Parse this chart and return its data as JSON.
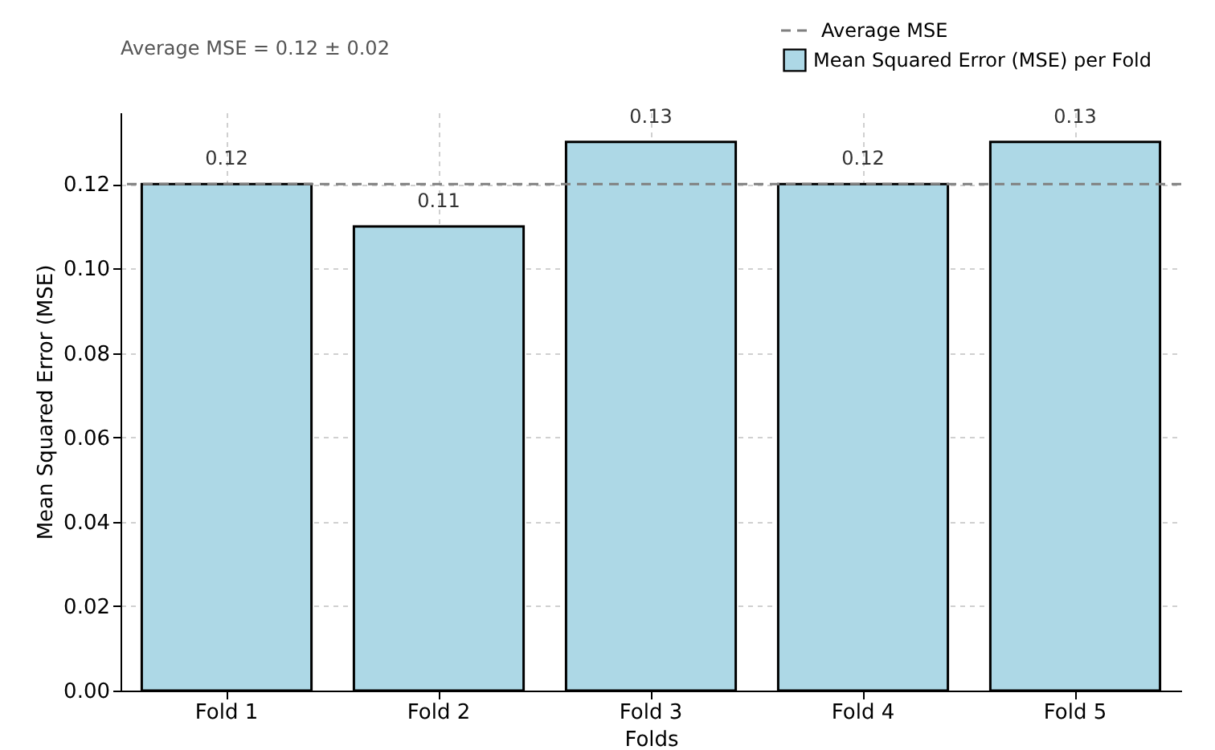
{
  "chart_data": {
    "type": "bar",
    "xlabel": "Folds",
    "ylabel": "Mean Squared Error (MSE)",
    "categories": [
      "Fold 1",
      "Fold 2",
      "Fold 3",
      "Fold 4",
      "Fold 5"
    ],
    "series": [
      {
        "name": "Mean Squared Error (MSE) per Fold",
        "color": "#add8e6",
        "values": [
          0.12,
          0.11,
          0.13,
          0.12,
          0.13
        ]
      }
    ],
    "ylim": [
      0,
      0.137
    ],
    "yticks": [
      {
        "value": 0,
        "label": "0.00"
      },
      {
        "value": 0.02,
        "label": "0.02"
      },
      {
        "value": 0.04,
        "label": "0.04"
      },
      {
        "value": 0.06,
        "label": "0.06"
      },
      {
        "value": 0.08,
        "label": "0.08"
      },
      {
        "value": 0.1,
        "label": "0.10"
      },
      {
        "value": 0.12,
        "label": "0.12"
      }
    ],
    "ref_lines": [
      {
        "axis": "y",
        "value": 0.12,
        "label": "Average MSE",
        "color": "#808080",
        "line_style": "dashed"
      }
    ],
    "annotations": [
      "Average MSE = 0.12 ± 0.02"
    ],
    "data_labels": true,
    "grid": true,
    "legend": "top right"
  }
}
